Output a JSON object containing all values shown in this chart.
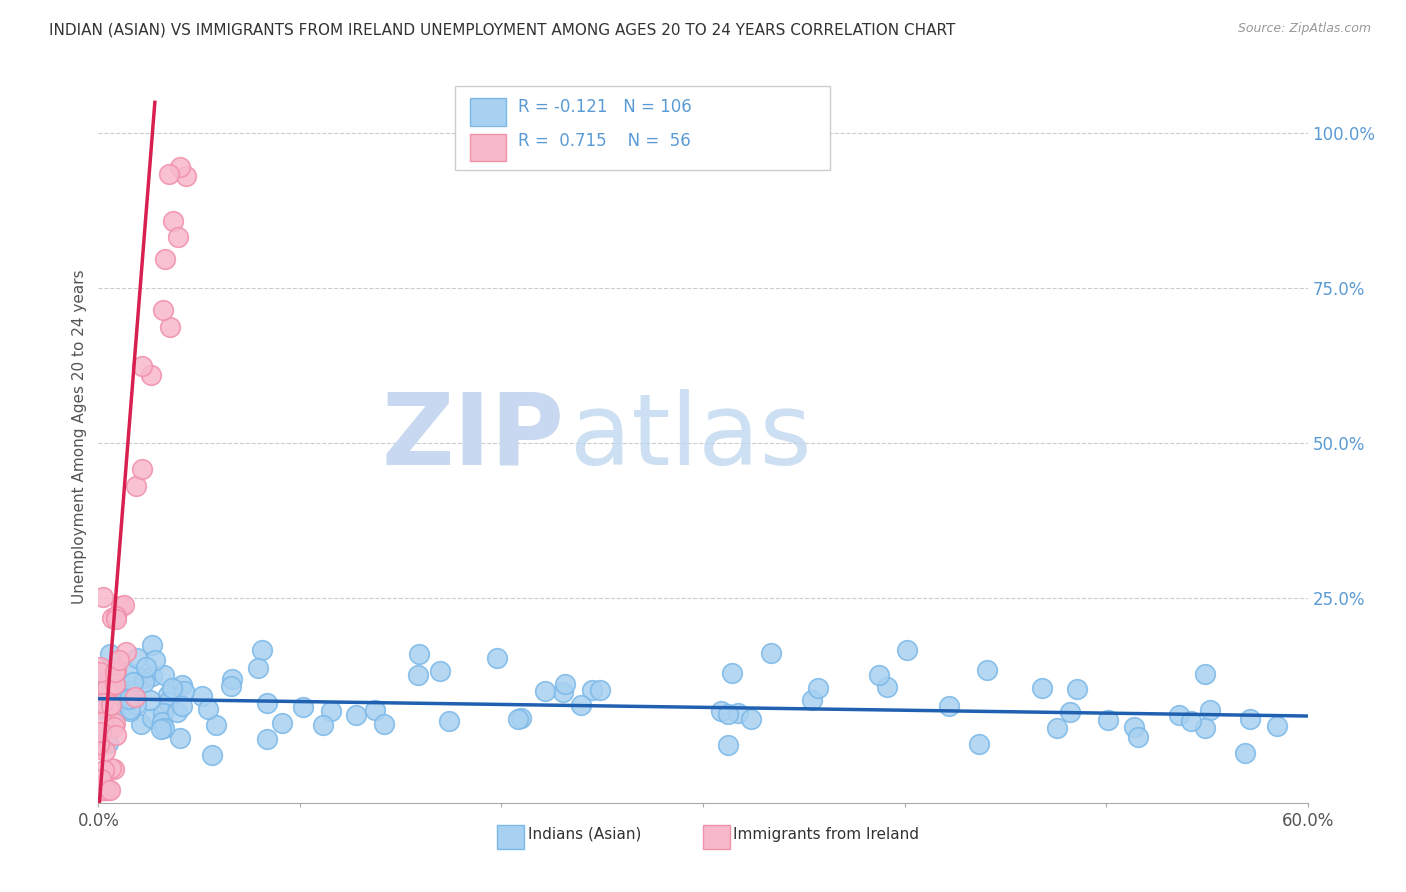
{
  "title": "INDIAN (ASIAN) VS IMMIGRANTS FROM IRELAND UNEMPLOYMENT AMONG AGES 20 TO 24 YEARS CORRELATION CHART",
  "source": "Source: ZipAtlas.com",
  "ylabel": "Unemployment Among Ages 20 to 24 years",
  "right_yticks": [
    "100.0%",
    "75.0%",
    "50.0%",
    "25.0%"
  ],
  "right_ytick_vals": [
    1.0,
    0.75,
    0.5,
    0.25
  ],
  "legend_blue_R": "-0.121",
  "legend_blue_N": "106",
  "legend_pink_R": "0.715",
  "legend_pink_N": "56",
  "legend_label_blue": "Indians (Asian)",
  "legend_label_pink": "Immigrants from Ireland",
  "blue_scatter_color": "#a8d0f0",
  "blue_scatter_edge": "#7ab8e8",
  "pink_scatter_color": "#f8b8cb",
  "pink_scatter_edge": "#f090aa",
  "blue_line_color": "#2060b0",
  "pink_line_color": "#d82050",
  "title_color": "#333333",
  "source_color": "#999999",
  "grid_color": "#cccccc",
  "axis_color": "#aaaaaa",
  "right_tick_color": "#5b9bd5",
  "watermark_zip_color": "#c8d8f0",
  "watermark_atlas_color": "#c0d8f0",
  "legend_box_color": "#5b9bd5",
  "legend_R_color": "#d04060",
  "xlim": [
    0.0,
    0.6
  ],
  "ylim": [
    -0.08,
    1.1
  ],
  "blue_trend_x0": 0.0,
  "blue_trend_x1": 0.6,
  "blue_trend_y0": 0.088,
  "blue_trend_y1": 0.06,
  "pink_trend_x0": 0.0,
  "pink_trend_x1": 0.028,
  "pink_trend_y0": -0.1,
  "pink_trend_y1": 1.05,
  "background_color": "#ffffff"
}
